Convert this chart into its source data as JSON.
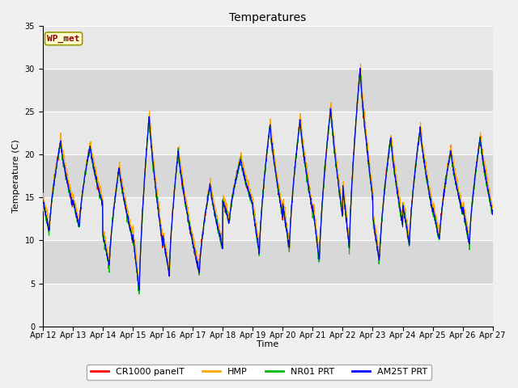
{
  "title": "Temperatures",
  "xlabel": "Time",
  "ylabel": "Temperature (C)",
  "ylim": [
    0,
    35
  ],
  "yticks": [
    0,
    5,
    10,
    15,
    20,
    25,
    30,
    35
  ],
  "x_tick_labels": [
    "Apr 12",
    "Apr 13",
    "Apr 14",
    "Apr 15",
    "Apr 16",
    "Apr 17",
    "Apr 18",
    "Apr 19",
    "Apr 20",
    "Apr 21",
    "Apr 22",
    "Apr 23",
    "Apr 24",
    "Apr 25",
    "Apr 26",
    "Apr 27"
  ],
  "series_colors": [
    "#ff0000",
    "#ffa500",
    "#00bb00",
    "#0000ff"
  ],
  "series_labels": [
    "CR1000 panelT",
    "HMP",
    "NR01 PRT",
    "AM25T PRT"
  ],
  "series_linewidth": 0.8,
  "plot_bg_color": "#e8e8e8",
  "fig_bg_color": "#f0f0f0",
  "title_fontsize": 10,
  "axis_label_fontsize": 8,
  "tick_fontsize": 7,
  "legend_fontsize": 8,
  "wp_met_label": "WP_met",
  "wp_met_bg": "#ffffcc",
  "wp_met_border": "#999900",
  "wp_met_text_color": "#880000",
  "wp_met_fontsize": 8,
  "band_colors": [
    "#e8e8e8",
    "#d8d8d8"
  ],
  "band_edges": [
    0,
    5,
    10,
    15,
    20,
    25,
    30,
    35
  ]
}
